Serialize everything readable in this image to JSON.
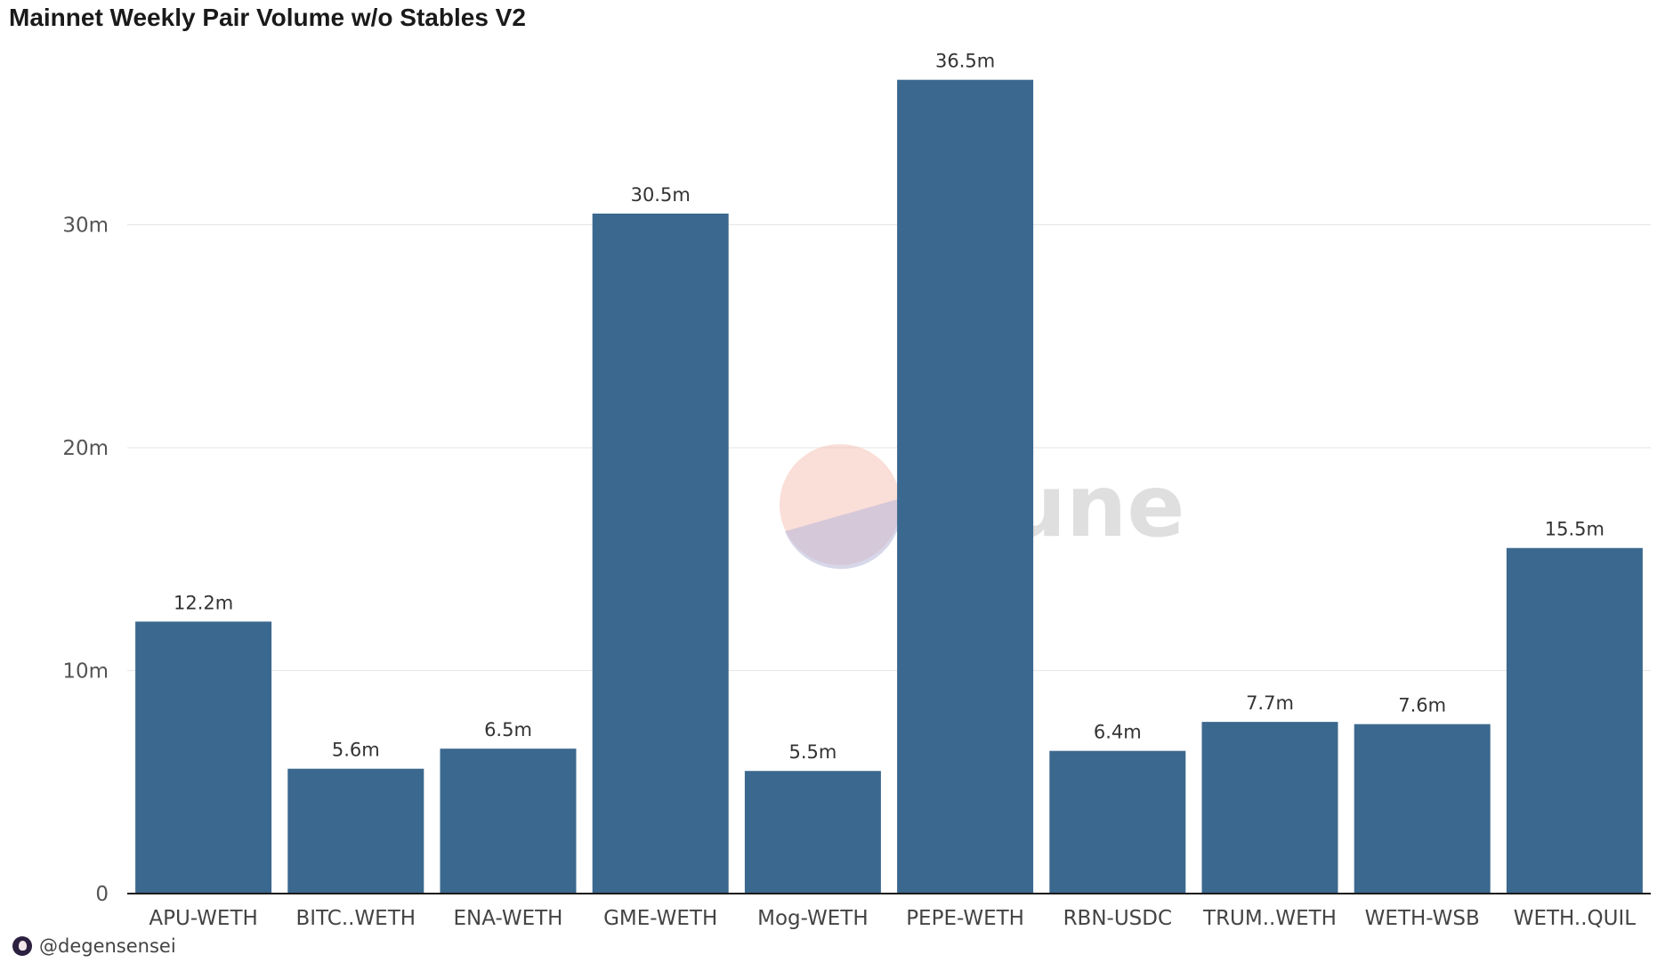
{
  "chart_data": {
    "type": "bar",
    "title": "Mainnet Weekly Pair Volume w/o Stables V2",
    "categories": [
      "APU-WETH",
      "BITC..WETH",
      "ENA-WETH",
      "GME-WETH",
      "Mog-WETH",
      "PEPE-WETH",
      "RBN-USDC",
      "TRUM..WETH",
      "WETH-WSB",
      "WETH..QUIL"
    ],
    "values": [
      12.2,
      5.6,
      6.5,
      30.5,
      5.5,
      36.5,
      6.4,
      7.7,
      7.6,
      15.5
    ],
    "value_labels": [
      "12.2m",
      "5.6m",
      "6.5m",
      "30.5m",
      "5.5m",
      "36.5m",
      "6.4m",
      "7.7m",
      "7.6m",
      "15.5m"
    ],
    "unit": "m",
    "xlabel": "",
    "ylabel": "",
    "ylim": [
      0,
      40
    ],
    "yticks": [
      0,
      10,
      20,
      30
    ],
    "ytick_labels": [
      "0",
      "10m",
      "20m",
      "30m"
    ],
    "grid": true,
    "bar_color": "#3b688e"
  },
  "watermark": {
    "text": "Dune"
  },
  "credit": {
    "handle": "@degensensei"
  }
}
